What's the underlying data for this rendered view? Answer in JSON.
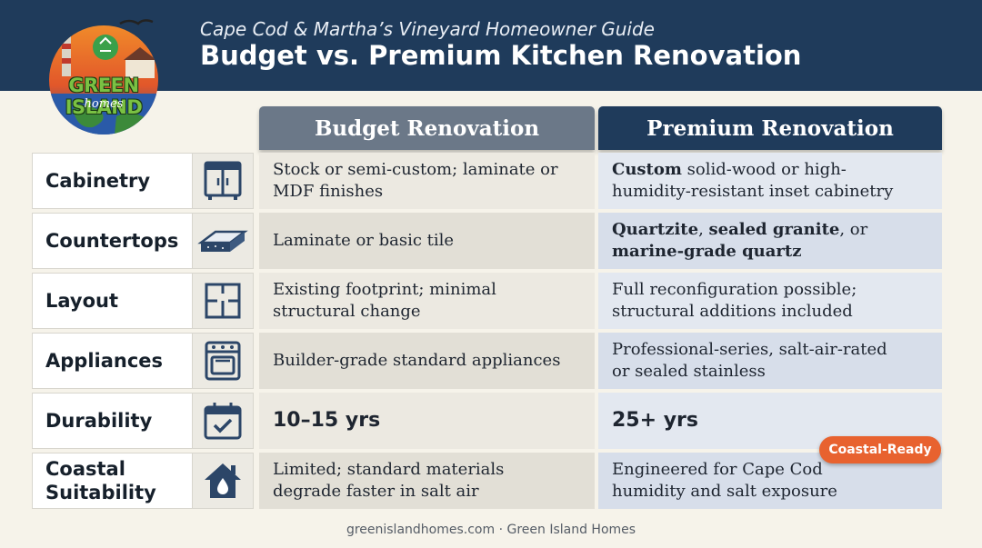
{
  "header": {
    "subtitle": "Cape Cod & Martha’s Vineyard Homeowner Guide",
    "title": "Budget vs. Premium Kitchen Renovation"
  },
  "logo": {
    "name": "GREEN ISLAND",
    "sub": "homes"
  },
  "columns": {
    "budget": "Budget Renovation",
    "premium": "Premium Renovation"
  },
  "rows": [
    {
      "label": "Cabinetry",
      "icon": "cabinet-icon",
      "budget": [
        "Stock or semi-custom; laminate or",
        "MDF finishes"
      ],
      "premium": [
        {
          "bold": "Custom",
          "text": " solid-wood or high-"
        },
        {
          "text": "humidity-resistant inset cabinetry"
        }
      ]
    },
    {
      "label": "Countertops",
      "icon": "countertop-slab-icon",
      "budget": [
        "Laminate or basic tile"
      ],
      "premium": [
        {
          "bold": "Quartzite",
          "text": ", "
        },
        {
          "bold": "sealed granite",
          "text": ", or"
        },
        {
          "bold": "marine-grade quartz",
          "text": ""
        }
      ]
    },
    {
      "label": "Layout",
      "icon": "floor-plan-icon",
      "budget": [
        "Existing footprint; minimal",
        "structural change"
      ],
      "premium": [
        "Full reconfiguration possible;",
        "structural additions included"
      ]
    },
    {
      "label": "Appliances",
      "icon": "oven-range-icon",
      "budget": [
        "Builder-grade standard appliances"
      ],
      "premium": [
        "Professional-series, salt-air-rated",
        "or sealed stainless"
      ]
    },
    {
      "label": "Durability",
      "icon": "calendar-check-icon",
      "budget": [
        "10–15 yrs"
      ],
      "premium": [
        "25+ yrs"
      ]
    },
    {
      "label": "Coastal Suitability",
      "label_lines": [
        "Coastal",
        "Suitability"
      ],
      "icon": "house-water-drop-icon",
      "budget": [
        "Limited; standard materials",
        "degrade faster in salt air"
      ],
      "premium": [
        "Engineered for Cape Cod",
        "humidity and salt exposure"
      ]
    }
  ],
  "badge": "Coastal-Ready",
  "footer": "greenislandhomes.com · Green Island Homes",
  "colors": {
    "header_bg": "#1f3b5b",
    "budget_header": "#6b7888",
    "premium_header": "#1f3b5b",
    "badge": "#e8622f",
    "logo_green": "#7ac143"
  }
}
